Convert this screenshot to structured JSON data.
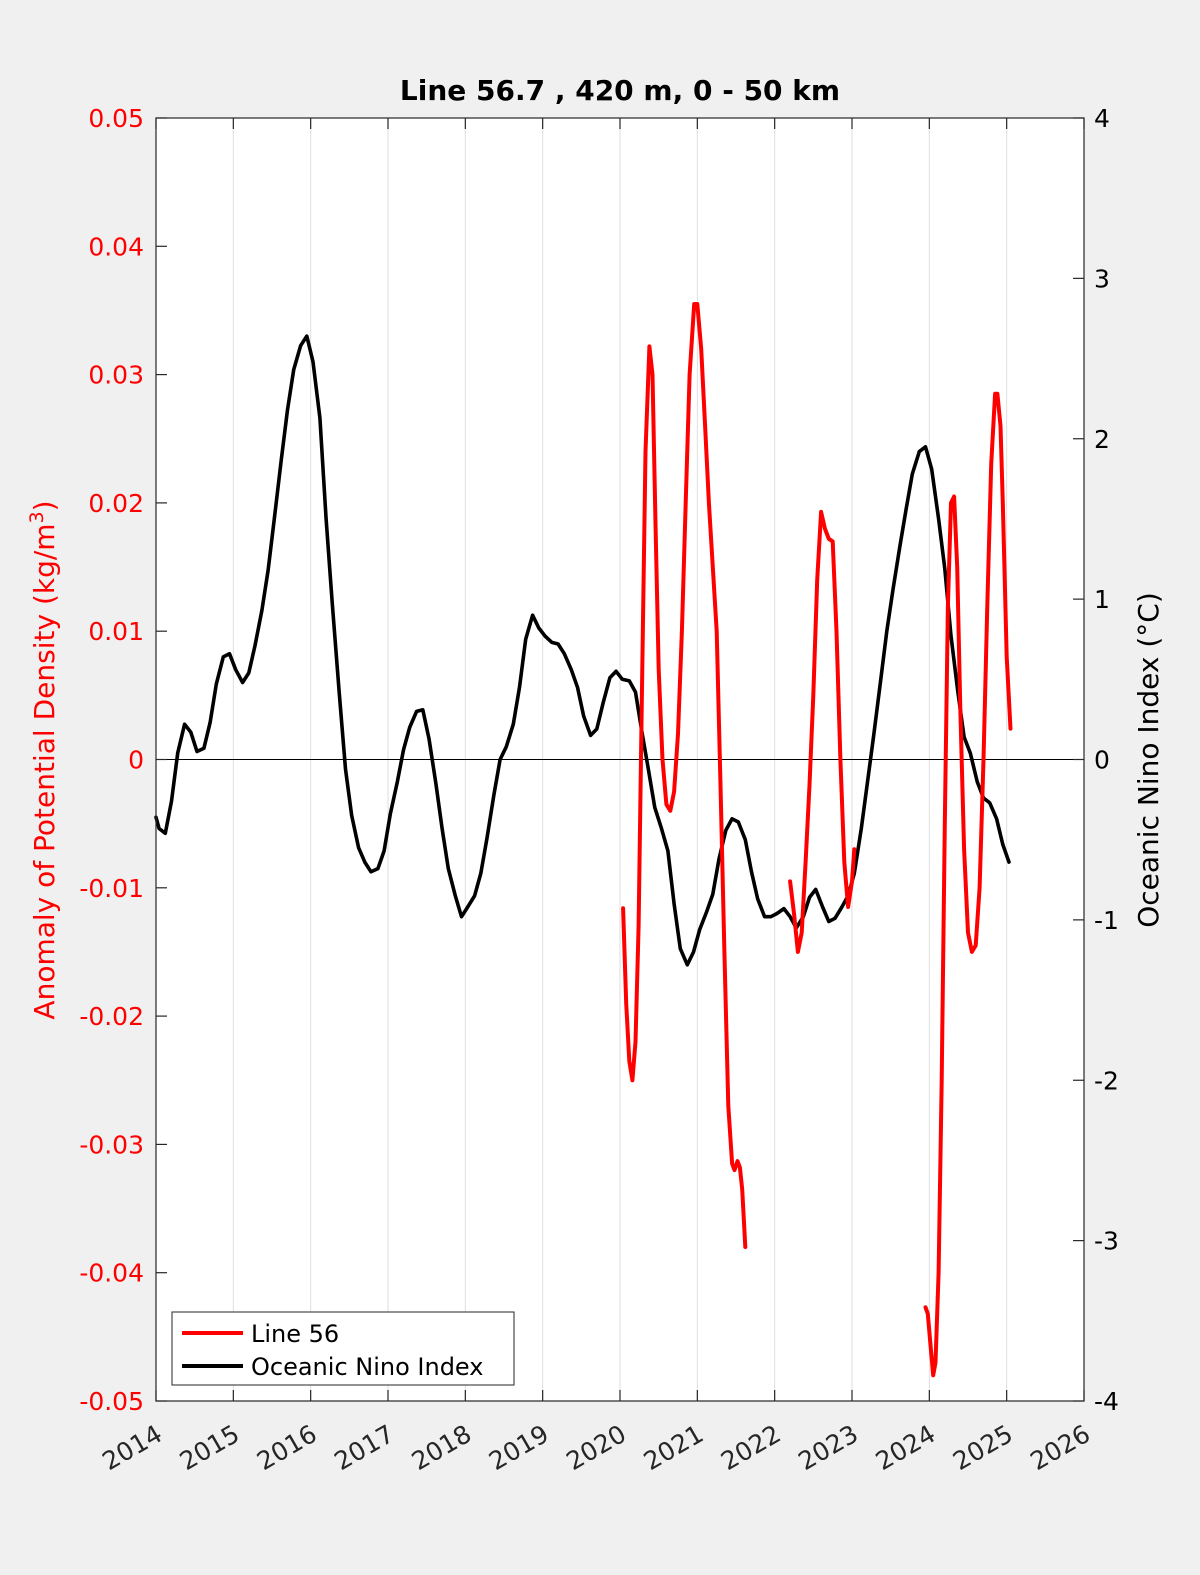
{
  "chart_data": {
    "type": "line",
    "title": "Line 56.7 , 420 m, 0 - 50 km",
    "xlim": [
      2014,
      2026
    ],
    "x_ticks": [
      "2014",
      "2015",
      "2016",
      "2017",
      "2018",
      "2019",
      "2020",
      "2021",
      "2022",
      "2023",
      "2024",
      "2025",
      "2026"
    ],
    "ylabel_left": "Anomaly of Potential Density (kg/m",
    "ylabel_left_sup": "3",
    "ylabel_left_close": ")",
    "ylim_left": [
      -0.05,
      0.05
    ],
    "y_ticks_left": [
      "-0.05",
      "-0.04",
      "-0.03",
      "-0.02",
      "-0.01",
      "0",
      "0.01",
      "0.02",
      "0.03",
      "0.04",
      "0.05"
    ],
    "ylabel_right": "Oceanic Nino Index (°C)",
    "ylim_right": [
      -4,
      4
    ],
    "y_ticks_right": [
      "-4",
      "-3",
      "-2",
      "-1",
      "0",
      "1",
      "2",
      "3",
      "4"
    ],
    "grid": "vertical",
    "zero_line": true,
    "legend_position": "bottom-left",
    "colors": {
      "line56": "#ff0000",
      "oni": "#000000",
      "left_axis": "#ff0000",
      "right_axis": "#000000"
    },
    "series": [
      {
        "name": "Line 56",
        "axis": "left",
        "color": "#ff0000",
        "segments": [
          [
            [
              2020.04,
              -0.0116
            ],
            [
              2020.08,
              -0.019
            ],
            [
              2020.12,
              -0.0235
            ],
            [
              2020.16,
              -0.025
            ],
            [
              2020.2,
              -0.022
            ],
            [
              2020.24,
              -0.013
            ],
            [
              2020.28,
              0.004
            ],
            [
              2020.33,
              0.024
            ],
            [
              2020.38,
              0.0322
            ],
            [
              2020.42,
              0.03
            ],
            [
              2020.46,
              0.018
            ],
            [
              2020.5,
              0.007
            ],
            [
              2020.55,
              0.0
            ],
            [
              2020.6,
              -0.0035
            ],
            [
              2020.65,
              -0.004
            ],
            [
              2020.7,
              -0.0025
            ],
            [
              2020.75,
              0.002
            ],
            [
              2020.8,
              0.01
            ],
            [
              2020.85,
              0.02
            ],
            [
              2020.9,
              0.03
            ],
            [
              2020.96,
              0.0355
            ],
            [
              2021.0,
              0.0355
            ],
            [
              2021.05,
              0.032
            ],
            [
              2021.1,
              0.026
            ],
            [
              2021.15,
              0.02
            ],
            [
              2021.2,
              0.015
            ],
            [
              2021.25,
              0.01
            ],
            [
              2021.3,
              -0.002
            ],
            [
              2021.35,
              -0.015
            ],
            [
              2021.4,
              -0.027
            ],
            [
              2021.45,
              -0.0315
            ],
            [
              2021.48,
              -0.032
            ],
            [
              2021.52,
              -0.0313
            ],
            [
              2021.55,
              -0.0318
            ],
            [
              2021.58,
              -0.0335
            ],
            [
              2021.62,
              -0.038
            ]
          ],
          [
            [
              2022.2,
              -0.0095
            ],
            [
              2022.25,
              -0.012
            ],
            [
              2022.3,
              -0.015
            ],
            [
              2022.35,
              -0.0135
            ],
            [
              2022.4,
              -0.008
            ],
            [
              2022.45,
              -0.002
            ],
            [
              2022.5,
              0.005
            ],
            [
              2022.55,
              0.014
            ],
            [
              2022.6,
              0.0193
            ],
            [
              2022.65,
              0.018
            ],
            [
              2022.7,
              0.0172
            ],
            [
              2022.75,
              0.017
            ],
            [
              2022.8,
              0.01
            ],
            [
              2022.85,
              0.0
            ],
            [
              2022.9,
              -0.008
            ],
            [
              2022.95,
              -0.0115
            ],
            [
              2023.0,
              -0.0095
            ],
            [
              2023.03,
              -0.007
            ]
          ],
          [
            [
              2023.95,
              -0.0427
            ],
            [
              2023.98,
              -0.0432
            ],
            [
              2024.02,
              -0.046
            ],
            [
              2024.05,
              -0.048
            ],
            [
              2024.08,
              -0.047
            ],
            [
              2024.12,
              -0.04
            ],
            [
              2024.16,
              -0.025
            ],
            [
              2024.2,
              -0.005
            ],
            [
              2024.24,
              0.012
            ],
            [
              2024.28,
              0.02
            ],
            [
              2024.32,
              0.0205
            ],
            [
              2024.36,
              0.015
            ],
            [
              2024.4,
              0.004
            ],
            [
              2024.45,
              -0.007
            ],
            [
              2024.5,
              -0.0135
            ],
            [
              2024.55,
              -0.015
            ],
            [
              2024.6,
              -0.0145
            ],
            [
              2024.65,
              -0.01
            ],
            [
              2024.7,
              0.0
            ],
            [
              2024.75,
              0.012
            ],
            [
              2024.8,
              0.023
            ],
            [
              2024.85,
              0.0285
            ],
            [
              2024.88,
              0.0285
            ],
            [
              2024.92,
              0.026
            ],
            [
              2024.95,
              0.02
            ],
            [
              2025.0,
              0.008
            ],
            [
              2025.05,
              0.0024
            ]
          ]
        ]
      },
      {
        "name": "Oceanic Nino Index",
        "axis": "right",
        "color": "#000000",
        "points": [
          [
            2014.0,
            -0.36
          ],
          [
            2014.04,
            -0.43
          ],
          [
            2014.12,
            -0.46
          ],
          [
            2014.2,
            -0.26
          ],
          [
            2014.28,
            0.04
          ],
          [
            2014.37,
            0.22
          ],
          [
            2014.45,
            0.17
          ],
          [
            2014.53,
            0.05
          ],
          [
            2014.62,
            0.07
          ],
          [
            2014.7,
            0.23
          ],
          [
            2014.78,
            0.47
          ],
          [
            2014.87,
            0.64
          ],
          [
            2014.95,
            0.66
          ],
          [
            2015.03,
            0.56
          ],
          [
            2015.12,
            0.48
          ],
          [
            2015.2,
            0.54
          ],
          [
            2015.28,
            0.71
          ],
          [
            2015.37,
            0.93
          ],
          [
            2015.45,
            1.18
          ],
          [
            2015.53,
            1.5
          ],
          [
            2015.62,
            1.87
          ],
          [
            2015.7,
            2.18
          ],
          [
            2015.78,
            2.43
          ],
          [
            2015.87,
            2.58
          ],
          [
            2015.95,
            2.64
          ],
          [
            2016.03,
            2.48
          ],
          [
            2016.12,
            2.13
          ],
          [
            2016.2,
            1.5
          ],
          [
            2016.28,
            0.97
          ],
          [
            2016.37,
            0.41
          ],
          [
            2016.45,
            -0.06
          ],
          [
            2016.53,
            -0.35
          ],
          [
            2016.62,
            -0.55
          ],
          [
            2016.7,
            -0.64
          ],
          [
            2016.78,
            -0.7
          ],
          [
            2016.87,
            -0.68
          ],
          [
            2016.95,
            -0.57
          ],
          [
            2017.03,
            -0.34
          ],
          [
            2017.12,
            -0.14
          ],
          [
            2017.2,
            0.06
          ],
          [
            2017.28,
            0.2
          ],
          [
            2017.37,
            0.3
          ],
          [
            2017.45,
            0.31
          ],
          [
            2017.53,
            0.13
          ],
          [
            2017.62,
            -0.15
          ],
          [
            2017.7,
            -0.43
          ],
          [
            2017.78,
            -0.68
          ],
          [
            2017.87,
            -0.85
          ],
          [
            2017.95,
            -0.98
          ],
          [
            2018.03,
            -0.92
          ],
          [
            2018.12,
            -0.85
          ],
          [
            2018.2,
            -0.71
          ],
          [
            2018.28,
            -0.49
          ],
          [
            2018.37,
            -0.22
          ],
          [
            2018.45,
            0.0
          ],
          [
            2018.53,
            0.08
          ],
          [
            2018.62,
            0.22
          ],
          [
            2018.7,
            0.45
          ],
          [
            2018.78,
            0.75
          ],
          [
            2018.87,
            0.9
          ],
          [
            2018.95,
            0.82
          ],
          [
            2019.03,
            0.77
          ],
          [
            2019.12,
            0.73
          ],
          [
            2019.2,
            0.72
          ],
          [
            2019.28,
            0.66
          ],
          [
            2019.37,
            0.56
          ],
          [
            2019.45,
            0.45
          ],
          [
            2019.53,
            0.27
          ],
          [
            2019.62,
            0.15
          ],
          [
            2019.7,
            0.19
          ],
          [
            2019.78,
            0.35
          ],
          [
            2019.87,
            0.51
          ],
          [
            2019.95,
            0.55
          ],
          [
            2020.03,
            0.5
          ],
          [
            2020.12,
            0.49
          ],
          [
            2020.2,
            0.42
          ],
          [
            2020.28,
            0.18
          ],
          [
            2020.37,
            -0.07
          ],
          [
            2020.45,
            -0.3
          ],
          [
            2020.53,
            -0.42
          ],
          [
            2020.62,
            -0.57
          ],
          [
            2020.7,
            -0.9
          ],
          [
            2020.78,
            -1.18
          ],
          [
            2020.87,
            -1.28
          ],
          [
            2020.95,
            -1.2
          ],
          [
            2021.03,
            -1.06
          ],
          [
            2021.12,
            -0.95
          ],
          [
            2021.2,
            -0.84
          ],
          [
            2021.28,
            -0.62
          ],
          [
            2021.37,
            -0.44
          ],
          [
            2021.45,
            -0.37
          ],
          [
            2021.53,
            -0.39
          ],
          [
            2021.62,
            -0.5
          ],
          [
            2021.7,
            -0.7
          ],
          [
            2021.78,
            -0.87
          ],
          [
            2021.87,
            -0.98
          ],
          [
            2021.95,
            -0.98
          ],
          [
            2022.03,
            -0.96
          ],
          [
            2022.12,
            -0.93
          ],
          [
            2022.2,
            -0.98
          ],
          [
            2022.28,
            -1.05
          ],
          [
            2022.37,
            -0.98
          ],
          [
            2022.45,
            -0.86
          ],
          [
            2022.53,
            -0.81
          ],
          [
            2022.62,
            -0.92
          ],
          [
            2022.7,
            -1.01
          ],
          [
            2022.78,
            -0.99
          ],
          [
            2022.87,
            -0.92
          ],
          [
            2022.95,
            -0.85
          ],
          [
            2023.03,
            -0.71
          ],
          [
            2023.12,
            -0.43
          ],
          [
            2023.2,
            -0.14
          ],
          [
            2023.28,
            0.15
          ],
          [
            2023.37,
            0.49
          ],
          [
            2023.45,
            0.8
          ],
          [
            2023.53,
            1.06
          ],
          [
            2023.62,
            1.33
          ],
          [
            2023.7,
            1.56
          ],
          [
            2023.78,
            1.78
          ],
          [
            2023.87,
            1.92
          ],
          [
            2023.95,
            1.95
          ],
          [
            2024.03,
            1.81
          ],
          [
            2024.12,
            1.5
          ],
          [
            2024.2,
            1.19
          ],
          [
            2024.28,
            0.77
          ],
          [
            2024.37,
            0.42
          ],
          [
            2024.45,
            0.14
          ],
          [
            2024.53,
            0.04
          ],
          [
            2024.62,
            -0.14
          ],
          [
            2024.7,
            -0.24
          ],
          [
            2024.78,
            -0.27
          ],
          [
            2024.87,
            -0.37
          ],
          [
            2024.95,
            -0.53
          ],
          [
            2025.03,
            -0.64
          ]
        ]
      }
    ]
  }
}
